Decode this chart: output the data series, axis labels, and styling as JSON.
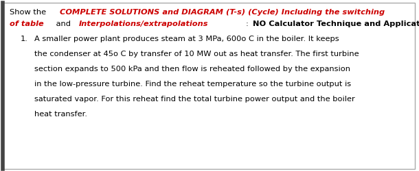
{
  "bg_color": "#ffffff",
  "border_color": "#aaaaaa",
  "font_size_header": 8.2,
  "font_size_body": 8.2,
  "header_line1": [
    {
      "text": "Show the ",
      "color": "#000000",
      "bold": false,
      "italic": false
    },
    {
      "text": "COMPLETE SOLUTIONS and DIAGRAM (T-s) (Cycle) Including the switching",
      "color": "#cc0000",
      "bold": true,
      "italic": true
    }
  ],
  "header_line2": [
    {
      "text": "of table",
      "color": "#cc0000",
      "bold": true,
      "italic": true
    },
    {
      "text": " and ",
      "color": "#000000",
      "bold": false,
      "italic": false
    },
    {
      "text": "Interpolations/extrapolations",
      "color": "#cc0000",
      "bold": true,
      "italic": true
    },
    {
      "text": ": ",
      "color": "#000000",
      "bold": false,
      "italic": false
    },
    {
      "text": "NO Calculator Technique and Applications",
      "color": "#000000",
      "bold": true,
      "italic": false
    },
    {
      "text": ".",
      "color": "#000000",
      "bold": false,
      "italic": false
    }
  ],
  "item_number": "1.",
  "body_lines": [
    "A smaller power plant produces steam at 3 MPa, 600o C in the boiler. It keeps",
    "the condenser at 45o C by transfer of 10 MW out as heat transfer. The first turbine",
    "section expands to 500 kPa and then flow is reheated followed by the expansion",
    "in the low-pressure turbine. Find the reheat temperature so the turbine output is",
    "saturated vapor. For this reheat find the total turbine power output and the boiler",
    "heat transfer."
  ]
}
